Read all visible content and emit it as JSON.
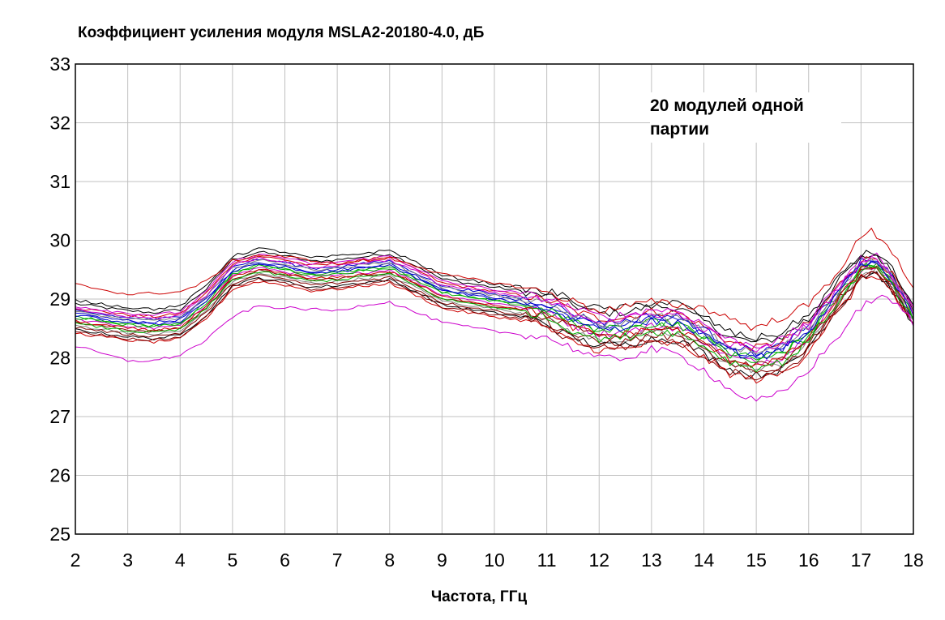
{
  "chart_data": {
    "type": "line",
    "title": "Коэффициент усиления модуля MSLA2-20180-4.0, дБ",
    "xlabel": "Частота, ГГц",
    "ylabel": "",
    "xlim": [
      2,
      18
    ],
    "ylim": [
      25,
      33
    ],
    "xticks": [
      "2",
      "3",
      "4",
      "5",
      "6",
      "7",
      "8",
      "9",
      "10",
      "11",
      "12",
      "13",
      "14",
      "15",
      "16",
      "17",
      "18"
    ],
    "yticks": [
      "25",
      "26",
      "27",
      "28",
      "29",
      "30",
      "31",
      "32",
      "33"
    ],
    "grid": true,
    "annotation": "20 модулей одной партии",
    "colors": [
      "#000000",
      "#cc0000",
      "#0000cc",
      "#00b000",
      "#cc00cc",
      "#800000",
      "#808080"
    ],
    "series_count": 20,
    "base_curve": {
      "x": [
        2,
        3,
        3.5,
        4,
        4.5,
        5,
        5.5,
        6,
        6.5,
        7,
        7.5,
        8,
        8.5,
        9,
        10,
        10.5,
        11,
        11.5,
        12,
        12.5,
        13,
        13.5,
        14,
        14.5,
        15,
        15.5,
        16,
        16.5,
        17,
        17.3,
        17.6,
        18
      ],
      "y": [
        28.7,
        28.58,
        28.55,
        28.6,
        28.95,
        29.45,
        29.58,
        29.52,
        29.42,
        29.45,
        29.5,
        29.55,
        29.35,
        29.12,
        28.98,
        28.92,
        28.82,
        28.62,
        28.48,
        28.5,
        28.6,
        28.58,
        28.35,
        28.08,
        27.98,
        28.08,
        28.42,
        29.0,
        29.55,
        29.6,
        29.3,
        28.7
      ]
    },
    "series_offsets": [
      0.22,
      0.15,
      0.05,
      0.0,
      -0.05,
      -0.1,
      -0.15,
      -0.22,
      -0.28,
      0.1,
      -0.02,
      0.18,
      -0.18,
      0.08,
      0.28,
      -0.08,
      0.02,
      -0.12,
      0.12,
      -0.25
    ],
    "envelope_top": {
      "x": [
        2,
        3,
        4,
        4.5,
        5,
        5.5,
        6,
        7,
        8,
        9,
        10,
        11,
        12,
        13,
        14,
        15,
        16,
        16.5,
        17,
        17.2,
        17.5,
        18
      ],
      "y": [
        29.25,
        29.08,
        29.12,
        29.3,
        29.65,
        29.75,
        29.72,
        29.6,
        29.72,
        29.42,
        29.28,
        29.12,
        28.8,
        28.95,
        28.85,
        28.5,
        28.9,
        29.4,
        30.05,
        30.15,
        29.95,
        29.2
      ]
    },
    "envelope_bottom": {
      "x": [
        2,
        3,
        3.5,
        4,
        4.5,
        5,
        5.5,
        6,
        7,
        7.5,
        8,
        9,
        10,
        11,
        12,
        12.5,
        13,
        13.5,
        14,
        14.5,
        15,
        15.5,
        16,
        16.5,
        17,
        17.3,
        17.7,
        18
      ],
      "y": [
        28.2,
        27.95,
        27.95,
        28.05,
        28.3,
        28.7,
        28.88,
        28.85,
        28.8,
        28.9,
        28.95,
        28.6,
        28.45,
        28.35,
        27.98,
        28.0,
        28.15,
        28.05,
        27.8,
        27.45,
        27.25,
        27.4,
        27.8,
        28.3,
        28.85,
        29.05,
        28.9,
        28.6
      ]
    }
  }
}
